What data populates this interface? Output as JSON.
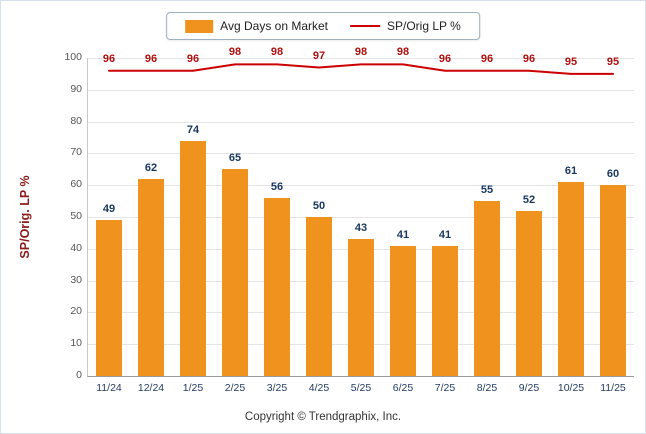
{
  "legend": {
    "bar_label": "Avg Days on Market",
    "line_label": "SP/Orig LP %"
  },
  "y_axis_title": "SP/Orig. LP %",
  "footer": "Copyright © Trendgraphix, Inc.",
  "colors": {
    "bar": "#f0921e",
    "line": "#cc0000",
    "bar_value_label": "#17375e",
    "line_value_label": "#b01010",
    "y_axis_title": "#8c1a1a"
  },
  "chart_data": {
    "type": "bar",
    "categories": [
      "11/24",
      "12/24",
      "1/25",
      "2/25",
      "3/25",
      "4/25",
      "5/25",
      "6/25",
      "7/25",
      "8/25",
      "9/25",
      "10/25",
      "11/25"
    ],
    "series": [
      {
        "name": "Avg Days on Market",
        "type": "bar",
        "values": [
          49,
          62,
          74,
          65,
          56,
          50,
          43,
          41,
          41,
          55,
          52,
          61,
          60
        ]
      },
      {
        "name": "SP/Orig LP %",
        "type": "line",
        "values": [
          96,
          96,
          96,
          98,
          98,
          97,
          98,
          98,
          96,
          96,
          96,
          95,
          95
        ]
      }
    ],
    "title": "",
    "xlabel": "",
    "ylabel": "SP/Orig. LP %",
    "ylim": [
      0,
      100
    ],
    "ytick_step": 10,
    "grid": true,
    "legend_position": "top"
  }
}
